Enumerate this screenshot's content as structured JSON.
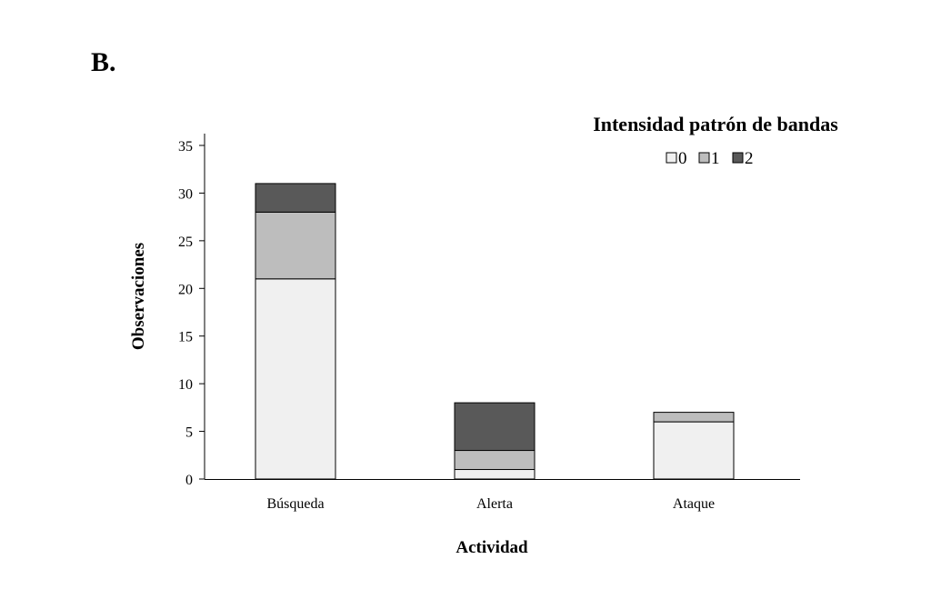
{
  "panel_label": "B.",
  "chart_data": {
    "type": "bar",
    "stacked": true,
    "categories": [
      "Búsqueda",
      "Alerta",
      "Ataque"
    ],
    "series": [
      {
        "name": "0",
        "color": "#f0f0f0",
        "values": [
          21,
          1,
          6
        ]
      },
      {
        "name": "1",
        "color": "#bdbdbd",
        "values": [
          7,
          2,
          1
        ]
      },
      {
        "name": "2",
        "color": "#595959",
        "values": [
          3,
          5,
          0
        ]
      }
    ],
    "legend_title": "Intensidad patrón de bandas",
    "legend_position": "top-right",
    "xlabel": "Actividad",
    "ylabel": "Observaciones",
    "ylim": [
      0,
      35
    ],
    "yticks": [
      0,
      5,
      10,
      15,
      20,
      25,
      30,
      35
    ],
    "grid": false
  }
}
